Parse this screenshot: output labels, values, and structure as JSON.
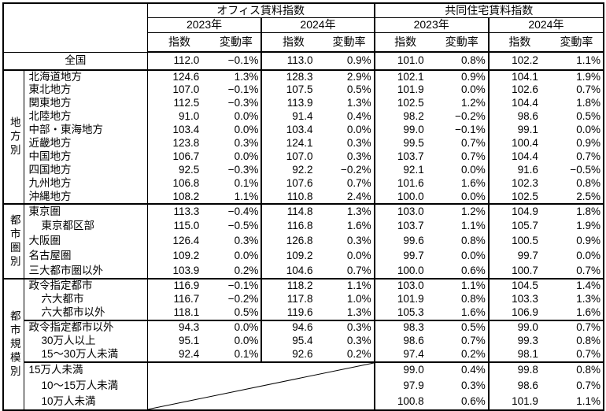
{
  "header": {
    "office_title": "オフィス賃料指数",
    "residential_title": "共同住宅賃料指数",
    "year_2023": "2023年",
    "year_2024": "2024年",
    "index_label": "指数",
    "rate_label": "変動率"
  },
  "national_row": {
    "label": "全国",
    "values": [
      "112.0",
      "−0.1%",
      "113.0",
      "0.9%",
      "101.0",
      "0.8%",
      "102.2",
      "1.1%"
    ]
  },
  "groups": [
    {
      "label": "地方別",
      "rows": [
        {
          "label": "北海道地方",
          "indent": 0,
          "values": [
            "124.6",
            "1.3%",
            "128.3",
            "2.9%",
            "102.1",
            "0.9%",
            "104.1",
            "1.9%"
          ]
        },
        {
          "label": "東北地方",
          "indent": 0,
          "values": [
            "107.0",
            "−0.1%",
            "107.5",
            "0.5%",
            "101.9",
            "0.0%",
            "102.6",
            "0.7%"
          ]
        },
        {
          "label": "関東地方",
          "indent": 0,
          "values": [
            "112.5",
            "−0.3%",
            "113.9",
            "1.3%",
            "102.5",
            "1.2%",
            "104.4",
            "1.8%"
          ]
        },
        {
          "label": "北陸地方",
          "indent": 0,
          "values": [
            "91.0",
            "0.0%",
            "91.4",
            "0.4%",
            "98.2",
            "−0.2%",
            "98.6",
            "0.5%"
          ]
        },
        {
          "label": "中部・東海地方",
          "indent": 0,
          "values": [
            "103.4",
            "0.0%",
            "103.4",
            "0.0%",
            "99.0",
            "−0.1%",
            "99.1",
            "0.0%"
          ]
        },
        {
          "label": "近畿地方",
          "indent": 0,
          "values": [
            "123.8",
            "0.3%",
            "124.1",
            "0.3%",
            "99.5",
            "0.7%",
            "100.4",
            "0.9%"
          ]
        },
        {
          "label": "中国地方",
          "indent": 0,
          "values": [
            "106.7",
            "0.0%",
            "107.0",
            "0.3%",
            "103.7",
            "0.7%",
            "104.4",
            "0.7%"
          ]
        },
        {
          "label": "四国地方",
          "indent": 0,
          "values": [
            "92.5",
            "−0.3%",
            "92.2",
            "−0.2%",
            "92.1",
            "0.0%",
            "91.6",
            "−0.5%"
          ]
        },
        {
          "label": "九州地方",
          "indent": 0,
          "values": [
            "106.8",
            "0.1%",
            "107.6",
            "0.7%",
            "101.6",
            "1.6%",
            "102.3",
            "0.8%"
          ]
        },
        {
          "label": "沖縄地方",
          "indent": 0,
          "values": [
            "108.2",
            "1.1%",
            "110.8",
            "2.4%",
            "100.0",
            "0.0%",
            "102.5",
            "2.5%"
          ]
        }
      ]
    },
    {
      "label": "都市圏別",
      "rows": [
        {
          "label": "東京圏",
          "indent": 0,
          "values": [
            "113.3",
            "−0.4%",
            "114.8",
            "1.3%",
            "103.0",
            "1.2%",
            "104.9",
            "1.8%"
          ]
        },
        {
          "label": "東京都区部",
          "indent": 1,
          "values": [
            "115.0",
            "−0.5%",
            "116.8",
            "1.6%",
            "103.7",
            "1.1%",
            "105.7",
            "1.9%"
          ]
        },
        {
          "label": "大阪圏",
          "indent": 0,
          "values": [
            "126.4",
            "0.3%",
            "126.8",
            "0.3%",
            "99.6",
            "0.8%",
            "100.5",
            "0.9%"
          ]
        },
        {
          "label": "名古屋圏",
          "indent": 0,
          "values": [
            "109.2",
            "0.0%",
            "109.2",
            "0.0%",
            "99.7",
            "0.0%",
            "99.7",
            "0.0%"
          ]
        },
        {
          "label": "三大都市圏以外",
          "indent": 0,
          "values": [
            "103.9",
            "0.2%",
            "104.6",
            "0.7%",
            "100.0",
            "0.6%",
            "100.7",
            "0.7%"
          ]
        }
      ]
    },
    {
      "label": "都市規模別",
      "rows": [
        {
          "label": "政令指定都市",
          "indent": 0,
          "values": [
            "116.9",
            "−0.1%",
            "118.2",
            "1.1%",
            "103.0",
            "1.1%",
            "104.5",
            "1.4%"
          ]
        },
        {
          "label": "六大都市",
          "indent": 1,
          "values": [
            "116.7",
            "−0.2%",
            "117.8",
            "1.0%",
            "101.9",
            "0.8%",
            "103.3",
            "1.3%"
          ]
        },
        {
          "label": "六大都市以外",
          "indent": 1,
          "values": [
            "118.1",
            "0.5%",
            "119.6",
            "1.3%",
            "105.3",
            "1.6%",
            "106.9",
            "1.6%"
          ]
        },
        {
          "label": "政令指定都市以外",
          "indent": 0,
          "divider": "medium",
          "values": [
            "94.3",
            "0.0%",
            "94.6",
            "0.3%",
            "98.3",
            "0.5%",
            "99.0",
            "0.7%"
          ]
        },
        {
          "label": "30万人以上",
          "indent": 1,
          "values": [
            "95.1",
            "0.0%",
            "95.4",
            "0.3%",
            "98.6",
            "0.7%",
            "99.3",
            "0.8%"
          ]
        },
        {
          "label": "15～30万人未満",
          "indent": 1,
          "values": [
            "92.4",
            "0.1%",
            "92.6",
            "0.2%",
            "97.4",
            "0.2%",
            "98.1",
            "0.7%"
          ]
        },
        {
          "label": "15万人未満",
          "indent": 0,
          "divider": "thick",
          "values": [
            null,
            null,
            null,
            null,
            "99.0",
            "0.4%",
            "99.8",
            "0.8%"
          ]
        },
        {
          "label": "10～15万人未満",
          "indent": 1,
          "values": [
            null,
            null,
            null,
            null,
            "97.9",
            "0.3%",
            "98.6",
            "0.7%"
          ]
        },
        {
          "label": "10万人未満",
          "indent": 1,
          "values": [
            null,
            null,
            null,
            null,
            "100.8",
            "0.6%",
            "101.9",
            "1.1%"
          ]
        }
      ]
    }
  ]
}
